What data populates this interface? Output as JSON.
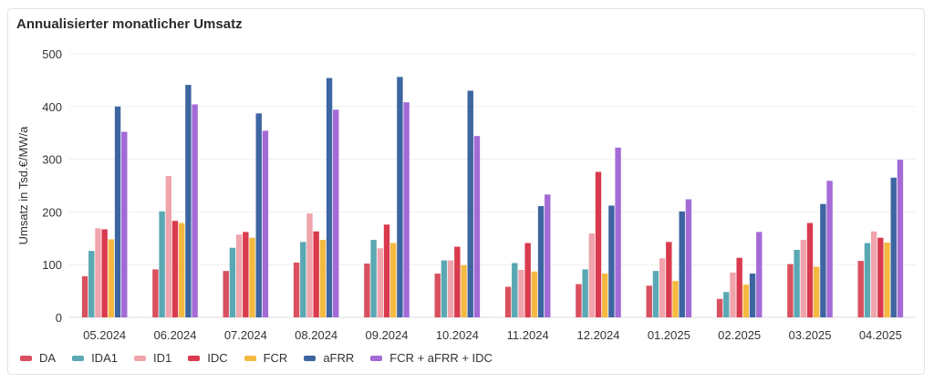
{
  "chart_data": {
    "type": "bar",
    "title": "Annualisierter monatlicher Umsatz",
    "xlabel": "",
    "ylabel": "Umsatz in Tsd.€/MW/a",
    "ylim": [
      0,
      500
    ],
    "yticks": [
      0,
      100,
      200,
      300,
      400,
      500
    ],
    "grid": true,
    "legend_position": "bottom-left",
    "categories": [
      "05.2024",
      "06.2024",
      "07.2024",
      "08.2024",
      "09.2024",
      "10.2024",
      "11.2024",
      "12.2024",
      "01.2025",
      "02.2025",
      "03.2025",
      "04.2025"
    ],
    "series": [
      {
        "name": "DA",
        "color": "#d9505f",
        "values": [
          78,
          91,
          88,
          104,
          102,
          83,
          58,
          63,
          60,
          35,
          101,
          107
        ]
      },
      {
        "name": "IDA1",
        "color": "#5aa8b3",
        "values": [
          126,
          201,
          132,
          143,
          147,
          108,
          103,
          91,
          88,
          48,
          128,
          141
        ]
      },
      {
        "name": "ID1",
        "color": "#f0a4ac",
        "values": [
          169,
          268,
          157,
          197,
          131,
          108,
          90,
          159,
          112,
          85,
          147,
          163
        ]
      },
      {
        "name": "IDC",
        "color": "#d93a4d",
        "values": [
          167,
          183,
          162,
          163,
          176,
          134,
          141,
          276,
          143,
          113,
          179,
          151
        ]
      },
      {
        "name": "FCR",
        "color": "#f5b942",
        "values": [
          148,
          179,
          151,
          147,
          141,
          99,
          87,
          83,
          69,
          62,
          96,
          142
        ]
      },
      {
        "name": "aFRR",
        "color": "#3d65a0",
        "values": [
          400,
          441,
          387,
          454,
          456,
          430,
          211,
          212,
          201,
          83,
          215,
          265
        ]
      },
      {
        "name": "FCR + aFRR + IDC",
        "color": "#a46ad6",
        "values": [
          352,
          404,
          354,
          394,
          408,
          344,
          233,
          322,
          224,
          162,
          259,
          299
        ]
      }
    ]
  }
}
